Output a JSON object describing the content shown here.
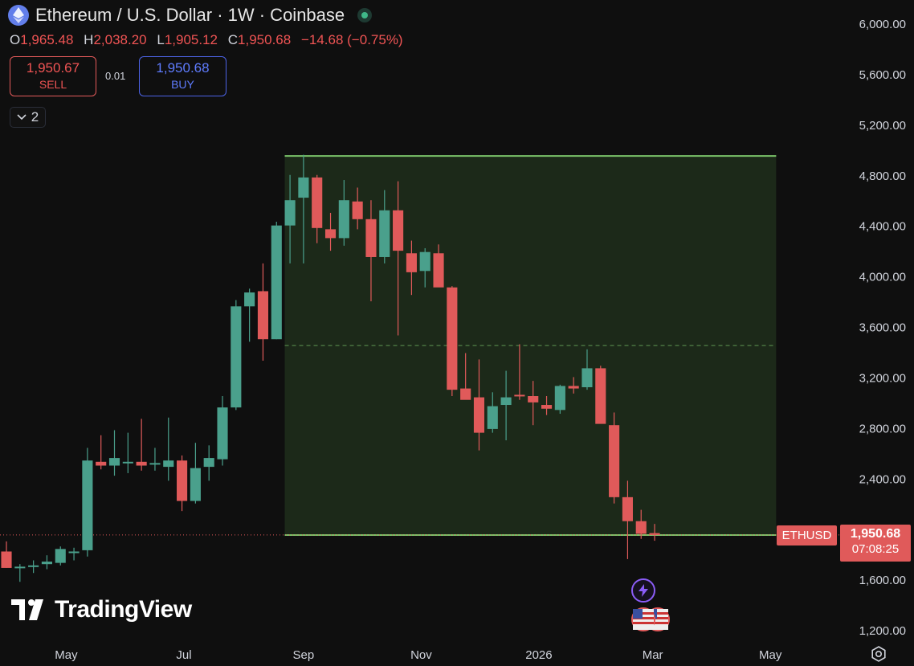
{
  "header": {
    "title": "Ethereum / U.S. Dollar · 1W · Coinbase"
  },
  "ohlc": {
    "open_label": "O",
    "open": "1,965.48",
    "high_label": "H",
    "high": "2,038.20",
    "low_label": "L",
    "low": "1,905.12",
    "close_label": "C",
    "close": "1,950.68",
    "change": "−14.68 (−0.75%)"
  },
  "trade": {
    "sell_price": "1,950.67",
    "sell_label": "SELL",
    "spread": "0.01",
    "buy_price": "1,950.68",
    "buy_label": "BUY"
  },
  "indicators_toggle": {
    "count": "2"
  },
  "logo": {
    "text": "TradingView"
  },
  "price_tag": {
    "symbol": "ETHUSD",
    "price": "1,950.68",
    "countdown": "07:08:25"
  },
  "icons": {
    "coin": "ethereum-icon",
    "live": "market-open-dot-icon",
    "collapse": "chevron-down-icon",
    "events": [
      "flash-event-icon",
      "us-flag-event-icon",
      "us-flag-event-icon"
    ],
    "settings": "gear-icon"
  },
  "colors": {
    "background": "#0f0f0f",
    "up": "#4aa08c",
    "down": "#e05a5a",
    "zone_fill": "#1d2b1a",
    "zone_border": "#7bc46a",
    "tick_text": "#d1d4dc"
  },
  "chart_data": {
    "type": "candlestick",
    "grid": false,
    "y_axis": {
      "side": "right",
      "range": [
        1150,
        6150
      ],
      "ticks": [
        1200,
        1600,
        2000,
        2400,
        2800,
        3200,
        3600,
        4000,
        4400,
        4800,
        5200,
        5600,
        6000
      ],
      "tick_labels": [
        "1,200.00",
        "1,600.00",
        "2,000.00",
        "2,400.00",
        "2,800.00",
        "3,200.00",
        "3,600.00",
        "4,000.00",
        "4,400.00",
        "4,800.00",
        "5,200.00",
        "5,600.00",
        "6,000.00"
      ]
    },
    "x_axis": {
      "range": [
        "2025-03-31",
        "2026-05-18"
      ],
      "ticks": [
        {
          "date": "2025-05-01",
          "label": "May"
        },
        {
          "date": "2025-07-01",
          "label": "Jul"
        },
        {
          "date": "2025-09-01",
          "label": "Sep"
        },
        {
          "date": "2025-11-01",
          "label": "Nov"
        },
        {
          "date": "2026-01-01",
          "label": "2026"
        },
        {
          "date": "2026-03-01",
          "label": "Mar"
        },
        {
          "date": "2026-05-01",
          "label": "May"
        }
      ]
    },
    "candles": [
      {
        "date": "2025-03-31",
        "o": 1820,
        "h": 1900,
        "l": 1690,
        "c": 1690
      },
      {
        "date": "2025-04-07",
        "o": 1690,
        "h": 1720,
        "l": 1580,
        "c": 1700
      },
      {
        "date": "2025-04-14",
        "o": 1700,
        "h": 1750,
        "l": 1650,
        "c": 1710
      },
      {
        "date": "2025-04-21",
        "o": 1720,
        "h": 1790,
        "l": 1680,
        "c": 1740
      },
      {
        "date": "2025-04-28",
        "o": 1730,
        "h": 1860,
        "l": 1710,
        "c": 1840
      },
      {
        "date": "2025-05-05",
        "o": 1810,
        "h": 1850,
        "l": 1750,
        "c": 1820
      },
      {
        "date": "2025-05-12",
        "o": 1830,
        "h": 2640,
        "l": 1780,
        "c": 2540
      },
      {
        "date": "2025-05-19",
        "o": 2530,
        "h": 2740,
        "l": 2470,
        "c": 2500
      },
      {
        "date": "2025-05-26",
        "o": 2500,
        "h": 2780,
        "l": 2420,
        "c": 2560
      },
      {
        "date": "2025-06-02",
        "o": 2520,
        "h": 2760,
        "l": 2440,
        "c": 2530
      },
      {
        "date": "2025-06-09",
        "o": 2530,
        "h": 2870,
        "l": 2460,
        "c": 2500
      },
      {
        "date": "2025-06-16",
        "o": 2510,
        "h": 2640,
        "l": 2460,
        "c": 2520
      },
      {
        "date": "2025-06-23",
        "o": 2490,
        "h": 2880,
        "l": 2380,
        "c": 2540
      },
      {
        "date": "2025-06-30",
        "o": 2540,
        "h": 2580,
        "l": 2140,
        "c": 2220
      },
      {
        "date": "2025-07-07",
        "o": 2220,
        "h": 2680,
        "l": 2200,
        "c": 2480
      },
      {
        "date": "2025-07-14",
        "o": 2490,
        "h": 2660,
        "l": 2380,
        "c": 2560
      },
      {
        "date": "2025-07-21",
        "o": 2550,
        "h": 3050,
        "l": 2500,
        "c": 2960
      },
      {
        "date": "2025-07-28",
        "o": 2960,
        "h": 3810,
        "l": 2940,
        "c": 3760
      },
      {
        "date": "2025-08-04",
        "o": 3760,
        "h": 3900,
        "l": 3480,
        "c": 3870
      },
      {
        "date": "2025-08-11",
        "o": 3880,
        "h": 4100,
        "l": 3330,
        "c": 3500
      },
      {
        "date": "2025-08-18",
        "o": 3500,
        "h": 4430,
        "l": 3500,
        "c": 4400
      },
      {
        "date": "2025-08-25",
        "o": 4400,
        "h": 4800,
        "l": 4100,
        "c": 4600
      },
      {
        "date": "2025-09-01",
        "o": 4620,
        "h": 4960,
        "l": 4100,
        "c": 4780
      },
      {
        "date": "2025-09-08",
        "o": 4780,
        "h": 4800,
        "l": 4260,
        "c": 4380
      },
      {
        "date": "2025-09-15",
        "o": 4370,
        "h": 4500,
        "l": 4200,
        "c": 4300
      },
      {
        "date": "2025-09-22",
        "o": 4300,
        "h": 4760,
        "l": 4240,
        "c": 4600
      },
      {
        "date": "2025-09-29",
        "o": 4590,
        "h": 4700,
        "l": 4370,
        "c": 4450
      },
      {
        "date": "2025-10-06",
        "o": 4450,
        "h": 4600,
        "l": 3800,
        "c": 4150
      },
      {
        "date": "2025-10-13",
        "o": 4150,
        "h": 4680,
        "l": 4100,
        "c": 4520
      },
      {
        "date": "2025-10-20",
        "o": 4520,
        "h": 4750,
        "l": 3530,
        "c": 4200
      },
      {
        "date": "2025-10-27",
        "o": 4180,
        "h": 4280,
        "l": 3850,
        "c": 4030
      },
      {
        "date": "2025-11-03",
        "o": 4040,
        "h": 4220,
        "l": 3910,
        "c": 4190
      },
      {
        "date": "2025-11-10",
        "o": 4180,
        "h": 4250,
        "l": 3930,
        "c": 3910
      },
      {
        "date": "2025-11-17",
        "o": 3910,
        "h": 3920,
        "l": 3050,
        "c": 3100
      },
      {
        "date": "2025-11-24",
        "o": 3110,
        "h": 3390,
        "l": 3030,
        "c": 3020
      },
      {
        "date": "2025-12-01",
        "o": 3040,
        "h": 3340,
        "l": 2620,
        "c": 2760
      },
      {
        "date": "2025-12-08",
        "o": 2790,
        "h": 3080,
        "l": 2760,
        "c": 2970
      },
      {
        "date": "2025-12-15",
        "o": 2980,
        "h": 3250,
        "l": 2700,
        "c": 3040
      },
      {
        "date": "2025-12-22",
        "o": 3060,
        "h": 3460,
        "l": 3020,
        "c": 3050
      },
      {
        "date": "2025-12-29",
        "o": 3050,
        "h": 3170,
        "l": 2820,
        "c": 3000
      },
      {
        "date": "2026-01-05",
        "o": 2980,
        "h": 3050,
        "l": 2900,
        "c": 2950
      },
      {
        "date": "2026-01-12",
        "o": 2940,
        "h": 3140,
        "l": 2910,
        "c": 3130
      },
      {
        "date": "2026-01-19",
        "o": 3130,
        "h": 3200,
        "l": 3070,
        "c": 3110
      },
      {
        "date": "2026-01-26",
        "o": 3120,
        "h": 3420,
        "l": 3100,
        "c": 3270
      },
      {
        "date": "2026-02-02",
        "o": 3270,
        "h": 3290,
        "l": 2850,
        "c": 2830
      },
      {
        "date": "2026-02-09",
        "o": 2820,
        "h": 2920,
        "l": 2200,
        "c": 2250
      },
      {
        "date": "2026-02-16",
        "o": 2250,
        "h": 2380,
        "l": 1760,
        "c": 2060
      },
      {
        "date": "2026-02-23",
        "o": 2060,
        "h": 2150,
        "l": 1920,
        "c": 1960
      },
      {
        "date": "2026-03-02",
        "o": 1965.48,
        "h": 2038.2,
        "l": 1905.12,
        "c": 1950.68
      }
    ],
    "zone": {
      "from_date": "2025-08-25",
      "to_date": "2026-05-04",
      "top": 4950,
      "bottom": 1950,
      "midline": 3450
    },
    "last_price_line": 1950.68
  }
}
